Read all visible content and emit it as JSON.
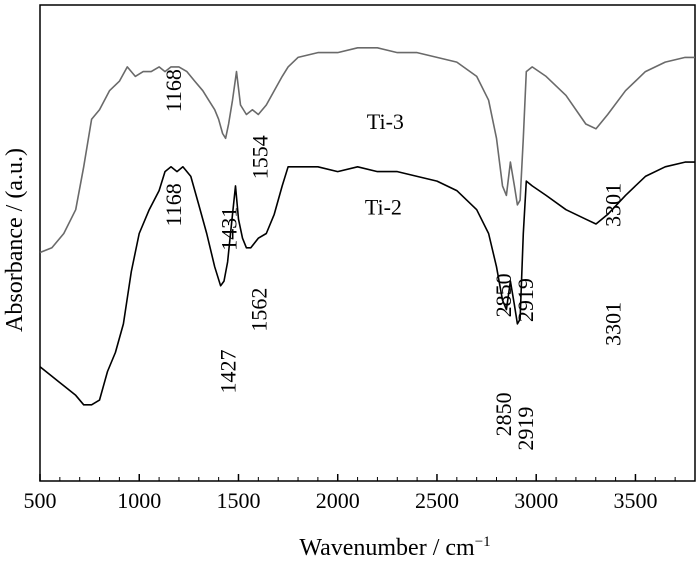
{
  "chart_data": {
    "type": "line",
    "title": "",
    "xlabel": "Wavenumber / cm",
    "xlabel_sup": "−1",
    "ylabel": "Absorbance / (a.u.)",
    "xlim": [
      500,
      3800
    ],
    "x_ticks": [
      "500",
      "1000",
      "1500",
      "2000",
      "2500",
      "3000",
      "3500"
    ],
    "x_tick_values": [
      500,
      1000,
      1500,
      2000,
      2500,
      3000,
      3500
    ],
    "y_ticks_shown": false,
    "ylim": [
      0,
      1
    ],
    "series": [
      {
        "name": "Ti-3",
        "color": "#6a6a6a",
        "x": [
          500,
          560,
          620,
          680,
          720,
          760,
          800,
          850,
          900,
          940,
          980,
          1020,
          1060,
          1100,
          1130,
          1160,
          1200,
          1240,
          1280,
          1320,
          1350,
          1380,
          1400,
          1420,
          1435,
          1450,
          1470,
          1490,
          1510,
          1540,
          1570,
          1600,
          1640,
          1680,
          1720,
          1750,
          1800,
          1900,
          2000,
          2100,
          2200,
          2300,
          2400,
          2500,
          2600,
          2700,
          2760,
          2800,
          2830,
          2850,
          2870,
          2890,
          2905,
          2919,
          2935,
          2950,
          2980,
          3050,
          3150,
          3250,
          3301,
          3360,
          3450,
          3550,
          3650,
          3750,
          3800
        ],
        "y": [
          0.48,
          0.49,
          0.52,
          0.57,
          0.66,
          0.76,
          0.78,
          0.82,
          0.84,
          0.87,
          0.85,
          0.86,
          0.86,
          0.87,
          0.86,
          0.87,
          0.87,
          0.86,
          0.84,
          0.82,
          0.8,
          0.78,
          0.76,
          0.73,
          0.72,
          0.75,
          0.8,
          0.86,
          0.79,
          0.77,
          0.78,
          0.77,
          0.79,
          0.82,
          0.85,
          0.87,
          0.89,
          0.9,
          0.9,
          0.91,
          0.91,
          0.9,
          0.9,
          0.89,
          0.88,
          0.85,
          0.8,
          0.72,
          0.62,
          0.6,
          0.67,
          0.62,
          0.58,
          0.59,
          0.72,
          0.86,
          0.87,
          0.85,
          0.81,
          0.75,
          0.74,
          0.77,
          0.82,
          0.86,
          0.88,
          0.89,
          0.89
        ]
      },
      {
        "name": "Ti-2",
        "color": "#000000",
        "x": [
          500,
          560,
          620,
          680,
          720,
          760,
          800,
          840,
          880,
          920,
          960,
          1000,
          1050,
          1100,
          1130,
          1160,
          1190,
          1220,
          1260,
          1300,
          1340,
          1380,
          1410,
          1427,
          1445,
          1465,
          1485,
          1500,
          1520,
          1540,
          1562,
          1600,
          1640,
          1680,
          1720,
          1750,
          1800,
          1900,
          2000,
          2100,
          2200,
          2300,
          2400,
          2500,
          2600,
          2700,
          2760,
          2800,
          2830,
          2850,
          2870,
          2890,
          2905,
          2919,
          2935,
          2950,
          2980,
          3050,
          3150,
          3250,
          3301,
          3360,
          3450,
          3550,
          3650,
          3750,
          3800
        ],
        "y": [
          0.24,
          0.22,
          0.2,
          0.18,
          0.16,
          0.16,
          0.17,
          0.23,
          0.27,
          0.33,
          0.44,
          0.52,
          0.57,
          0.61,
          0.65,
          0.66,
          0.65,
          0.66,
          0.64,
          0.58,
          0.52,
          0.45,
          0.41,
          0.42,
          0.46,
          0.54,
          0.62,
          0.55,
          0.51,
          0.49,
          0.49,
          0.51,
          0.52,
          0.56,
          0.62,
          0.66,
          0.66,
          0.66,
          0.65,
          0.66,
          0.65,
          0.65,
          0.64,
          0.63,
          0.61,
          0.57,
          0.52,
          0.45,
          0.38,
          0.36,
          0.42,
          0.37,
          0.33,
          0.34,
          0.52,
          0.63,
          0.62,
          0.6,
          0.57,
          0.55,
          0.54,
          0.56,
          0.6,
          0.64,
          0.66,
          0.67,
          0.67
        ]
      }
    ],
    "series_labels": [
      {
        "text": "Ti-3",
        "x": 2240,
        "y": 0.74
      },
      {
        "text": "Ti-2",
        "x": 2230,
        "y": 0.56
      }
    ],
    "annotations": [
      {
        "text": "1168",
        "x": 1210,
        "y": 0.82
      },
      {
        "text": "1431",
        "x": 1490,
        "y": 0.53
      },
      {
        "text": "1554",
        "x": 1645,
        "y": 0.68
      },
      {
        "text": "2850",
        "x": 2872,
        "y": 0.39
      },
      {
        "text": "2919",
        "x": 2985,
        "y": 0.38
      },
      {
        "text": "3301",
        "x": 3425,
        "y": 0.58
      },
      {
        "text": "1168",
        "x": 1210,
        "y": 0.58
      },
      {
        "text": "1427",
        "x": 1485,
        "y": 0.23
      },
      {
        "text": "1562",
        "x": 1640,
        "y": 0.36
      },
      {
        "text": "2850",
        "x": 2872,
        "y": 0.14
      },
      {
        "text": "2919",
        "x": 2985,
        "y": 0.11
      },
      {
        "text": "3301",
        "x": 3425,
        "y": 0.33
      }
    ]
  }
}
